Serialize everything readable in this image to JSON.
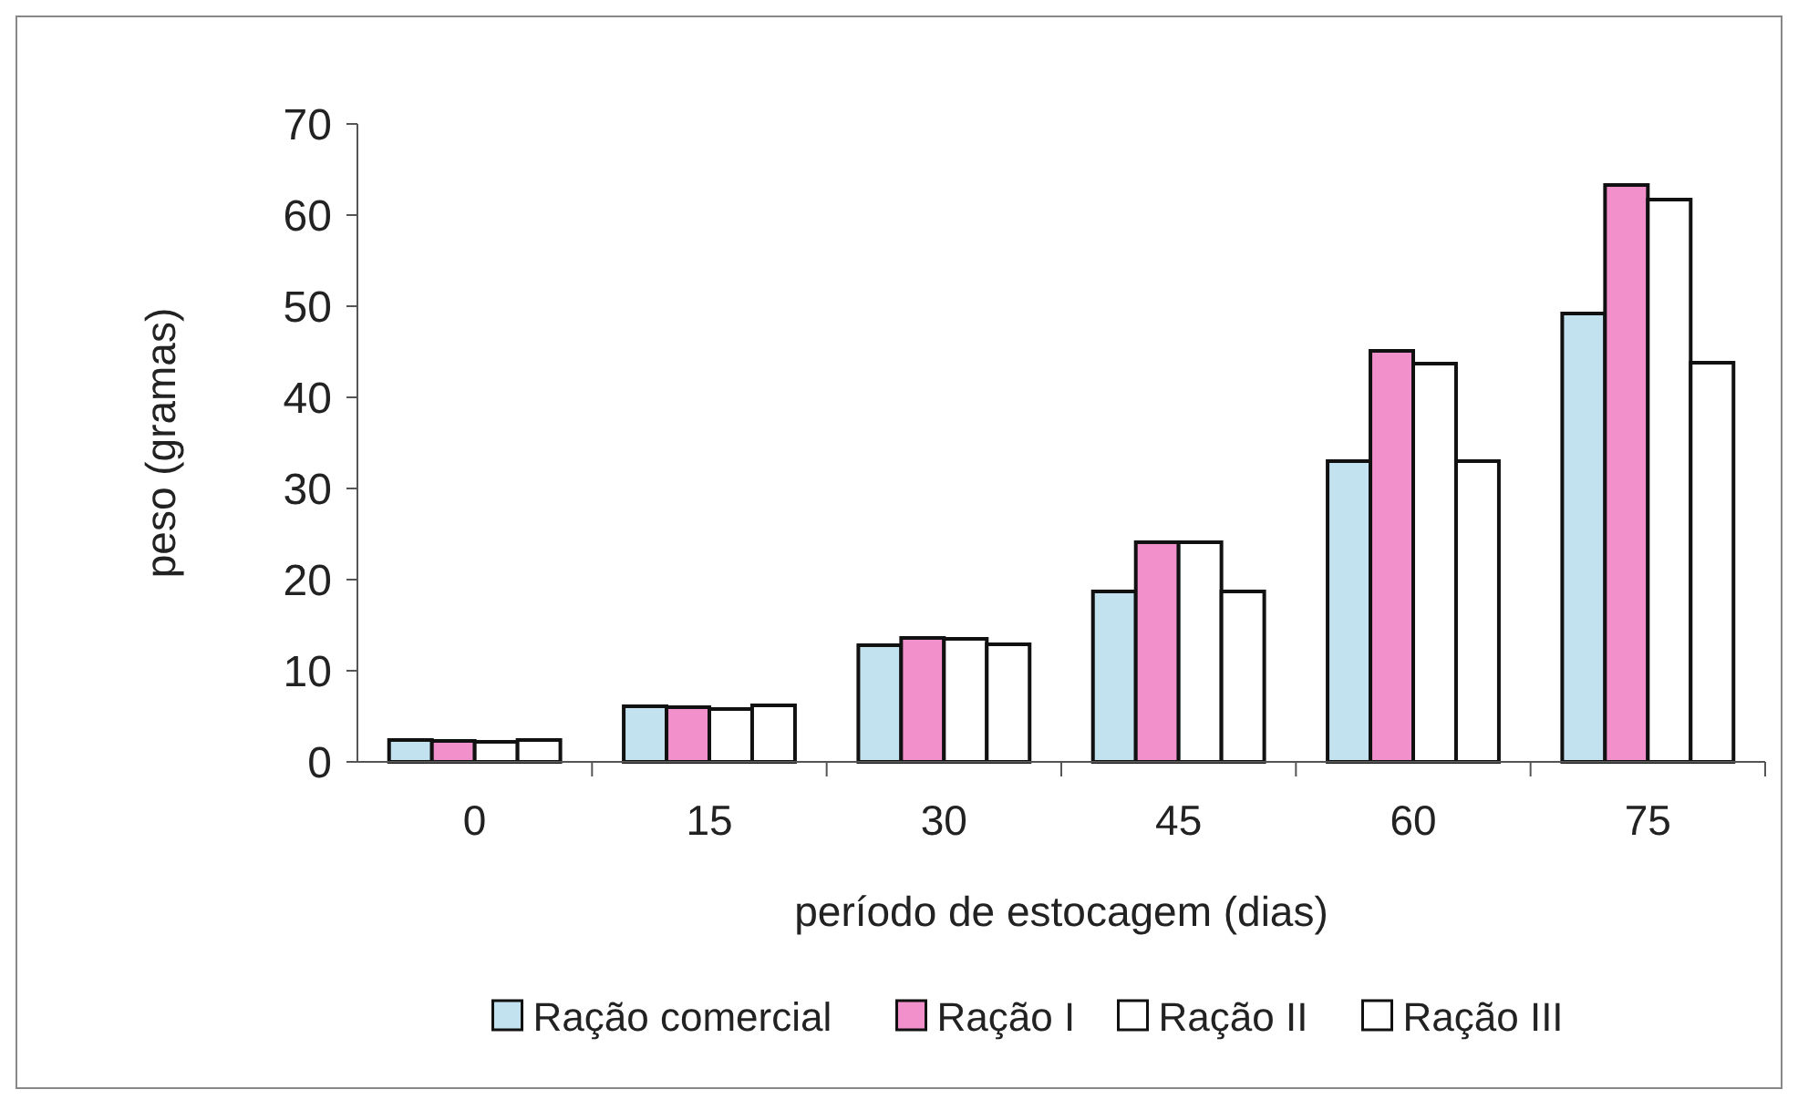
{
  "chart_data": {
    "type": "bar",
    "xlabel": "período de estocagem (dias)",
    "ylabel": "peso (gramas)",
    "categories": [
      "0",
      "15",
      "30",
      "45",
      "60",
      "75"
    ],
    "ylim": [
      0,
      70
    ],
    "yticks": [
      0,
      10,
      20,
      30,
      40,
      50,
      60,
      70
    ],
    "grid": false,
    "legend": "bottom",
    "series": [
      {
        "name": "Ração comercial",
        "color": "#c2e2f0",
        "values": [
          2.4,
          6.1,
          12.8,
          18.7,
          33,
          49.2
        ]
      },
      {
        "name": "Ração I",
        "color": "#f290cc",
        "values": [
          2.3,
          6.0,
          13.6,
          24.1,
          45.1,
          63.3
        ]
      },
      {
        "name": "Ração II",
        "color": "#ffffff",
        "values": [
          2.2,
          5.8,
          13.5,
          24.1,
          43.7,
          61.7
        ]
      },
      {
        "name": "Ração III",
        "color": "#ffffff",
        "values": [
          2.4,
          6.2,
          12.9,
          18.7,
          33,
          43.8
        ]
      }
    ]
  }
}
